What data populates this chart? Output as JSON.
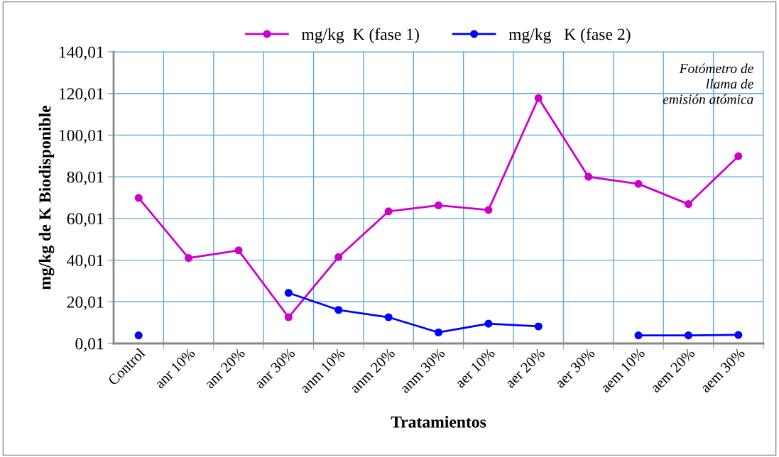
{
  "chart_data": {
    "type": "line",
    "xlabel": "Tratamientos",
    "ylabel": "mg/kg de K Biodisponible",
    "categories": [
      "Control",
      "anr 10%",
      "anr 20%",
      "anr 30%",
      "anm 10%",
      "anm 20%",
      "anm 30%",
      "aer 10%",
      "aer 20%",
      "aer 30%",
      "aem 10%",
      "aem 20%",
      "aem 30%"
    ],
    "series": [
      {
        "name": "mg/kg  K (fase 1)",
        "color": "#cc00cc",
        "values": [
          69.9,
          41.0,
          44.7,
          12.6,
          41.5,
          63.4,
          66.3,
          64.1,
          117.8,
          80.0,
          76.6,
          66.9,
          89.9
        ]
      },
      {
        "name": "mg/kg   K (fase 2)",
        "color": "#0000ff",
        "values": [
          3.9,
          null,
          null,
          24.3,
          16.1,
          12.6,
          5.3,
          9.5,
          8.2,
          null,
          3.9,
          3.9,
          4.1
        ]
      }
    ],
    "ylim": [
      0.01,
      140.01
    ],
    "yticks": [
      {
        "value": 0.01,
        "label": "0,01"
      },
      {
        "value": 20.01,
        "label": "20,01"
      },
      {
        "value": 40.01,
        "label": "40,01"
      },
      {
        "value": 60.01,
        "label": "60,01"
      },
      {
        "value": 80.01,
        "label": "80,01"
      },
      {
        "value": 100.01,
        "label": "100,01"
      },
      {
        "value": 120.01,
        "label": "120,01"
      },
      {
        "value": 140.01,
        "label": "140,01"
      }
    ],
    "grid": true,
    "legend": "top",
    "marker": "circle",
    "line_style": "solid",
    "annotations": [
      "Fotómetro de\nllama de\nemisión atómica"
    ]
  }
}
